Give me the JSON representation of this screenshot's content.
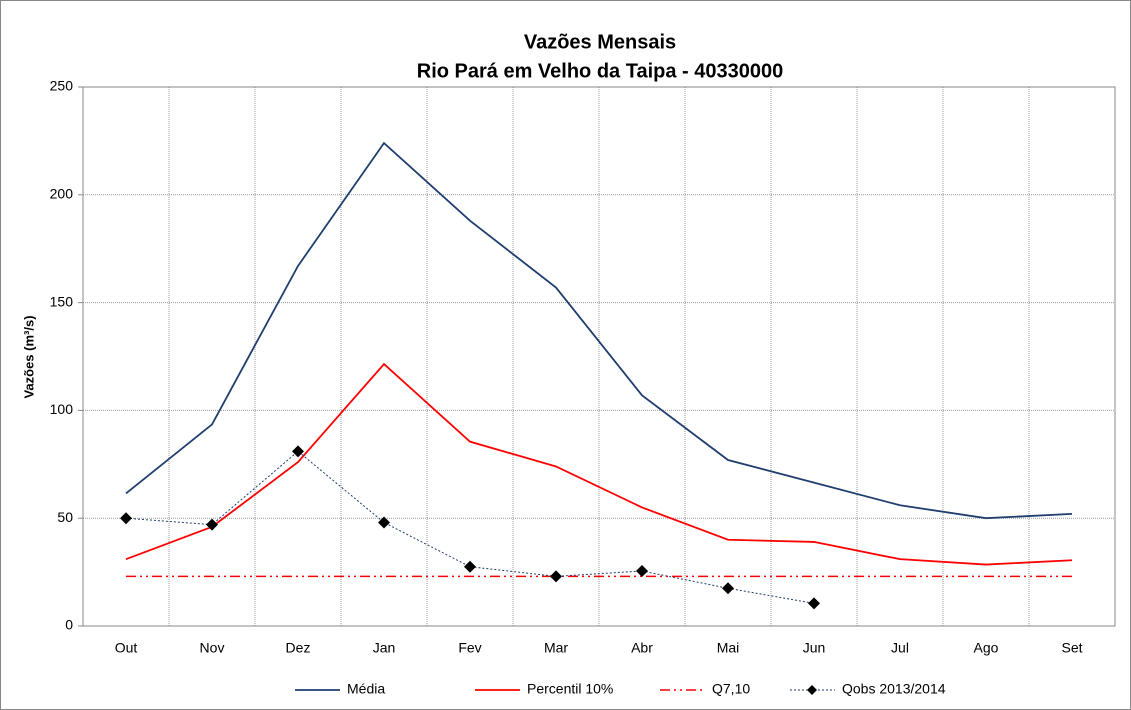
{
  "chart_data": {
    "type": "line",
    "title": "Vazões Mensais",
    "subtitle": "Rio Pará em Velho da Taipa - 40330000",
    "y_label": "Vazões (m³/s)",
    "categories": [
      "Out",
      "Nov",
      "Dez",
      "Jan",
      "Fev",
      "Mar",
      "Abr",
      "Mai",
      "Jun",
      "Jul",
      "Ago",
      "Set"
    ],
    "series": [
      {
        "name": "Média",
        "color": "#1f3e6e",
        "width": 1.8,
        "dash": "solid",
        "marker": "none",
        "values": [
          61.5,
          93.5,
          167,
          224,
          188,
          157,
          107,
          77,
          66.5,
          56,
          50,
          52
        ]
      },
      {
        "name": "Percentil 10%",
        "color": "#ff0000",
        "width": 1.8,
        "dash": "solid",
        "marker": "none",
        "values": [
          31,
          46,
          76,
          121.5,
          85.5,
          74,
          55,
          40,
          39,
          31,
          28.5,
          30.5
        ]
      },
      {
        "name": "Q7,10",
        "color": "#ff0000",
        "width": 1.5,
        "dash": "dashdotdot",
        "marker": "none",
        "values": [
          23,
          23,
          23,
          23,
          23,
          23,
          23,
          23,
          23,
          23,
          23,
          23
        ]
      },
      {
        "name": "Qobs 2013/2014",
        "color": "#1f3e6e",
        "width": 1,
        "dash": "dot",
        "marker": "diamond",
        "values": [
          50,
          47,
          81,
          48,
          27.5,
          23,
          25.5,
          17.5,
          10.5,
          null,
          null,
          null
        ]
      }
    ],
    "ylim": [
      0,
      250
    ],
    "yticks": [
      0,
      50,
      100,
      150,
      200,
      250
    ],
    "grid": true,
    "legend": "bottom"
  }
}
